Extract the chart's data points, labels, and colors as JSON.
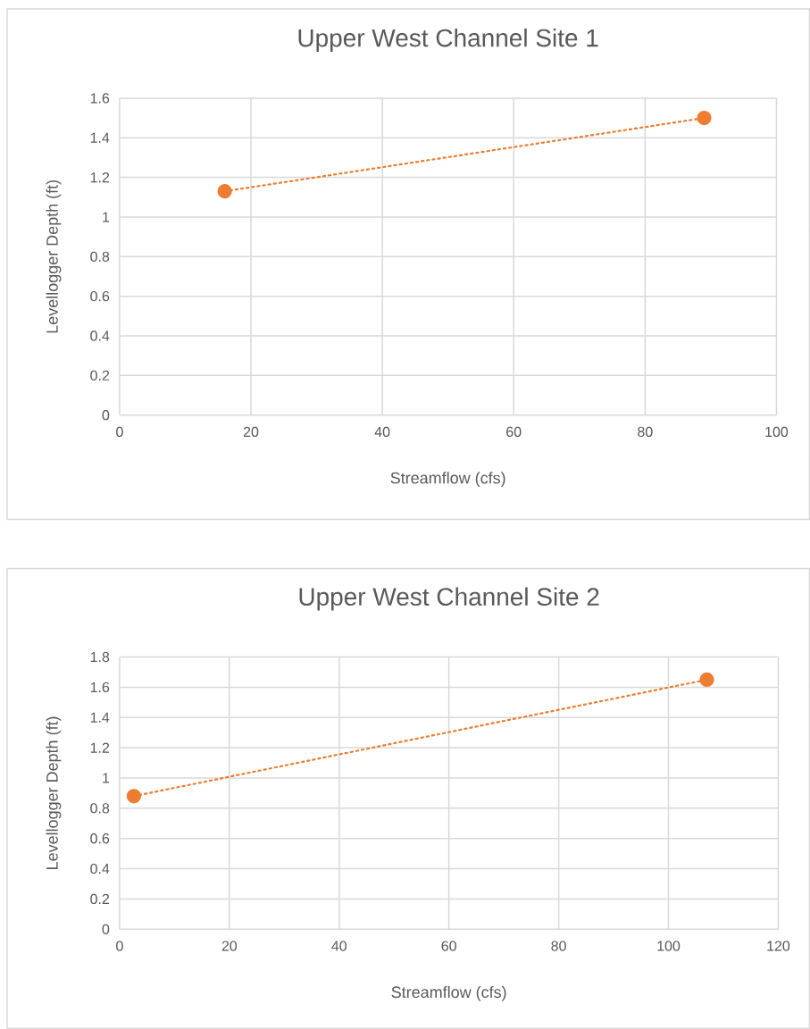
{
  "chart_data": [
    {
      "type": "line",
      "title": "Upper West Channel Site 1",
      "xlabel": "Streamflow (cfs)",
      "ylabel": "Levellogger Depth (ft)",
      "grid": true,
      "marker": "circle",
      "line_style": "dotted",
      "xlim": [
        0,
        100
      ],
      "ylim": [
        0,
        1.6
      ],
      "xticks": [
        0,
        20,
        40,
        60,
        80,
        100
      ],
      "yticks": [
        0,
        0.2,
        0.4,
        0.6,
        0.8,
        1,
        1.2,
        1.4,
        1.6
      ],
      "series": [
        {
          "color": "#ed7d31",
          "x": [
            16,
            89
          ],
          "values": [
            1.13,
            1.5
          ]
        }
      ]
    },
    {
      "type": "line",
      "title": "Upper West Channel Site 2",
      "xlabel": "Streamflow (cfs)",
      "ylabel": "Levellogger Depth (ft)",
      "grid": true,
      "marker": "circle",
      "line_style": "dotted",
      "xlim": [
        0,
        120
      ],
      "ylim": [
        0,
        1.8
      ],
      "xticks": [
        0,
        20,
        40,
        60,
        80,
        100,
        120
      ],
      "yticks": [
        0,
        0.2,
        0.4,
        0.6,
        0.8,
        1,
        1.2,
        1.4,
        1.6,
        1.8
      ],
      "series": [
        {
          "color": "#ed7d31",
          "x": [
            2.6,
            107
          ],
          "values": [
            0.88,
            1.65
          ]
        }
      ]
    }
  ]
}
